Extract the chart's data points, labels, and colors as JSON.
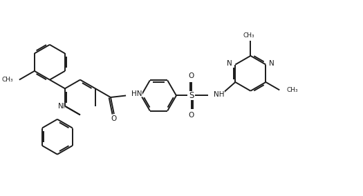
{
  "background_color": "#ffffff",
  "line_color": "#1a1a1a",
  "bond_width": 1.4,
  "fig_width": 5.25,
  "fig_height": 2.84,
  "dpi": 100,
  "xlim": [
    0,
    10.5
  ],
  "ylim": [
    0,
    5.4
  ]
}
